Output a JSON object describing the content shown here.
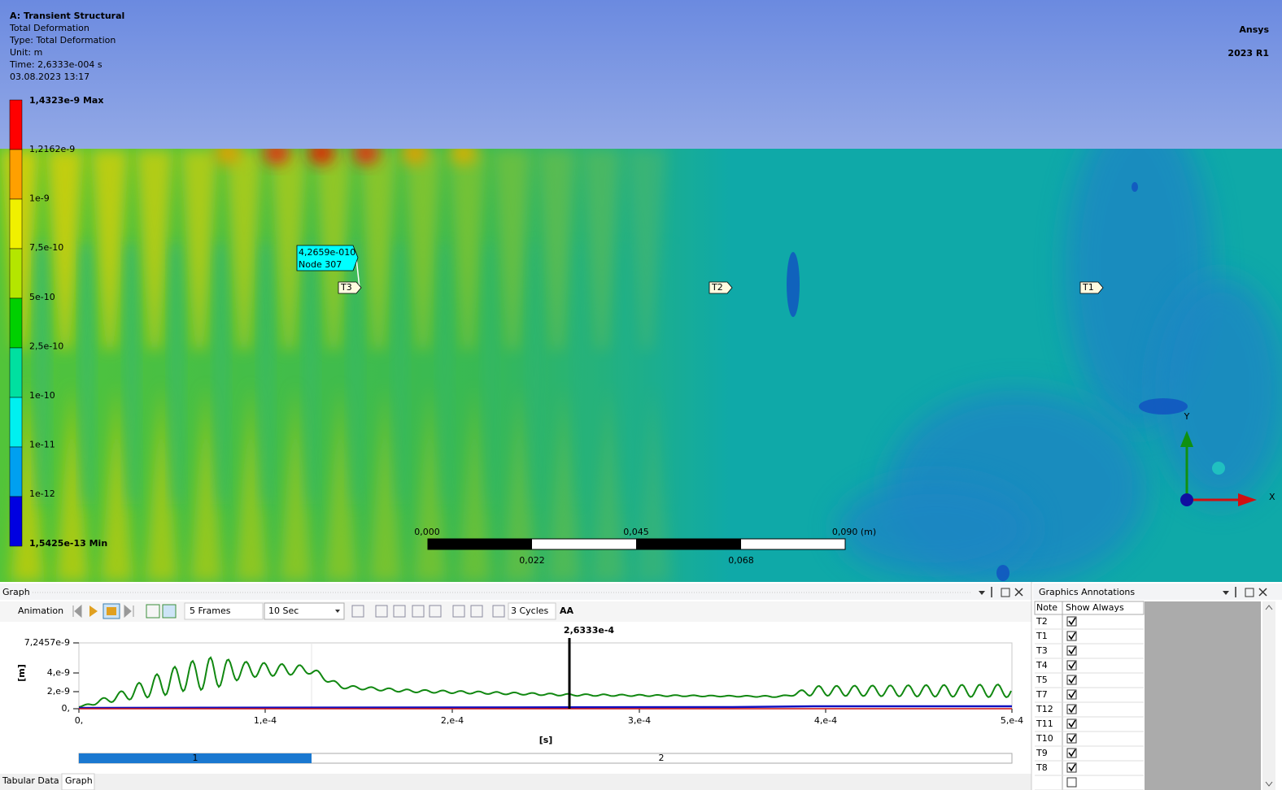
{
  "viewport": {
    "header": {
      "title": "A: Transient Structural",
      "result": "Total Deformation",
      "type": "Type: Total Deformation",
      "unit": "Unit: m",
      "time": "Time: 2,6333e-004 s",
      "date": "03.08.2023 13:17"
    },
    "logo": {
      "brand": "Ansys",
      "version": "2023 R1"
    },
    "legend": {
      "max": "1,4323e-9 Max",
      "levels": [
        "1,2162e-9",
        "1e-9",
        "7,5e-10",
        "5e-10",
        "2,5e-10",
        "1e-10",
        "1e-11",
        "1e-12"
      ],
      "min": "1,5425e-13 Min"
    },
    "probe": {
      "value": "4,2659e-010",
      "node": "Node 307"
    },
    "tags": [
      "T3",
      "T2",
      "T1"
    ],
    "scale_bar": {
      "top": [
        "0,000",
        "0,045",
        "0,090 (m)"
      ],
      "bottom": [
        "0,022",
        "0,068"
      ]
    },
    "triad": {
      "y": "Y",
      "x": "X"
    }
  },
  "graph_panel": {
    "title": "Graph",
    "toolbar": {
      "animation": "Animation",
      "frames": "5 Frames",
      "duration": "10 Sec",
      "cycles": "3 Cycles",
      "aa": "AA"
    },
    "y_label": "[m]",
    "yticks": [
      "7,2457e-9",
      "4,e-9",
      "2,e-9",
      "0,"
    ],
    "x_label": "[s]",
    "xticks": [
      "0,",
      "1,e-4",
      "2,e-4",
      "3,e-4",
      "4,e-4",
      "5,e-4"
    ],
    "cursor": "2,6333e-4",
    "steps": [
      "1",
      "2"
    ]
  },
  "tabs": [
    "Tabular Data",
    "Graph"
  ],
  "annotations": {
    "title": "Graphics Annotations",
    "columns": [
      "Note",
      "Show Always"
    ],
    "rows": [
      {
        "note": "T2",
        "show_always": true
      },
      {
        "note": "T1",
        "show_always": true
      },
      {
        "note": "T3",
        "show_always": true
      },
      {
        "note": "T4",
        "show_always": true
      },
      {
        "note": "T5",
        "show_always": true
      },
      {
        "note": "T7",
        "show_always": true
      },
      {
        "note": "T12",
        "show_always": true
      },
      {
        "note": "T11",
        "show_always": true
      },
      {
        "note": "T10",
        "show_always": true
      },
      {
        "note": "T9",
        "show_always": true
      },
      {
        "note": "T8",
        "show_always": true
      }
    ]
  }
}
